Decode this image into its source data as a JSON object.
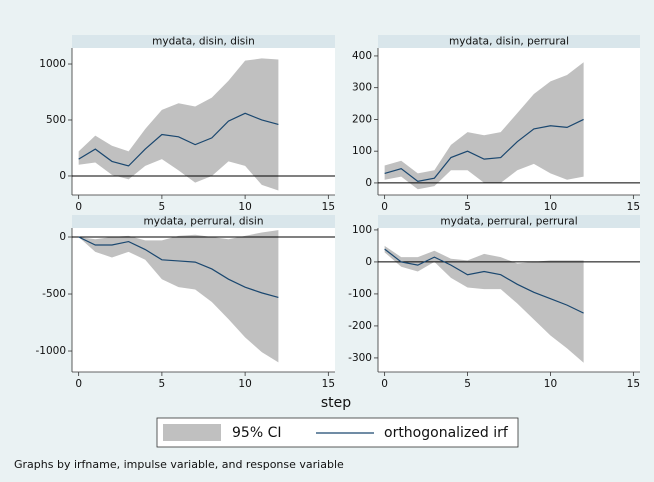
{
  "chart_data": [
    {
      "type": "irf",
      "title": "mydata, disin, disin",
      "x": [
        0,
        1,
        2,
        3,
        4,
        5,
        6,
        7,
        8,
        9,
        10,
        11,
        12
      ],
      "irf": [
        150,
        240,
        130,
        90,
        240,
        370,
        350,
        280,
        340,
        490,
        560,
        500,
        460
      ],
      "upper": [
        220,
        360,
        270,
        220,
        420,
        590,
        650,
        620,
        700,
        850,
        1030,
        1050,
        1040
      ],
      "lower": [
        100,
        120,
        10,
        -30,
        90,
        150,
        50,
        -60,
        0,
        130,
        90,
        -80,
        -130
      ],
      "xlim": [
        -0.4,
        15.4
      ],
      "xticks": [
        0,
        5,
        10,
        15
      ],
      "ylim": [
        -170,
        1143
      ],
      "yticks": [
        0,
        500,
        1000
      ],
      "yline": 0
    },
    {
      "type": "irf",
      "title": "mydata, disin, perrural",
      "x": [
        0,
        1,
        2,
        3,
        4,
        5,
        6,
        7,
        8,
        9,
        10,
        11,
        12
      ],
      "irf": [
        30,
        45,
        5,
        15,
        80,
        100,
        75,
        80,
        130,
        170,
        180,
        175,
        200
      ],
      "upper": [
        55,
        70,
        30,
        40,
        120,
        160,
        150,
        160,
        220,
        280,
        320,
        340,
        380
      ],
      "lower": [
        10,
        20,
        -20,
        -10,
        40,
        40,
        0,
        0,
        40,
        60,
        30,
        10,
        20
      ],
      "xlim": [
        -0.4,
        15.4
      ],
      "xticks": [
        0,
        5,
        10,
        15
      ],
      "ylim": [
        -38,
        425
      ],
      "yticks": [
        0,
        100,
        200,
        300,
        400
      ],
      "yline": 0
    },
    {
      "type": "irf",
      "title": "mydata, perrural, disin",
      "x": [
        0,
        1,
        2,
        3,
        4,
        5,
        6,
        7,
        8,
        9,
        10,
        11,
        12
      ],
      "irf": [
        0,
        -70,
        -70,
        -40,
        -110,
        -200,
        -210,
        -220,
        -280,
        -370,
        -440,
        -490,
        -530
      ],
      "upper": [
        0,
        -20,
        0,
        10,
        -30,
        -30,
        10,
        20,
        0,
        -20,
        10,
        40,
        60
      ],
      "lower": [
        0,
        -130,
        -180,
        -130,
        -200,
        -370,
        -440,
        -460,
        -570,
        -720,
        -880,
        -1010,
        -1100
      ],
      "xlim": [
        -0.4,
        15.4
      ],
      "xticks": [
        0,
        5,
        10,
        15
      ],
      "ylim": [
        -1184,
        79
      ],
      "yticks": [
        -1000,
        -500,
        0
      ],
      "yline": 0
    },
    {
      "type": "irf",
      "title": "mydata, perrural, perrural",
      "x": [
        0,
        1,
        2,
        3,
        4,
        5,
        6,
        7,
        8,
        9,
        10,
        11,
        12
      ],
      "irf": [
        40,
        0,
        -10,
        15,
        -10,
        -40,
        -30,
        -40,
        -70,
        -95,
        -115,
        -135,
        -160
      ],
      "upper": [
        50,
        15,
        15,
        35,
        10,
        5,
        25,
        15,
        -5,
        0,
        5,
        5,
        5
      ],
      "lower": [
        30,
        -15,
        -30,
        0,
        -50,
        -80,
        -85,
        -85,
        -130,
        -180,
        -230,
        -270,
        -315
      ],
      "xlim": [
        -0.4,
        15.4
      ],
      "xticks": [
        0,
        5,
        10,
        15
      ],
      "ylim": [
        -344,
        106
      ],
      "yticks": [
        -300,
        -200,
        -100,
        0,
        100
      ],
      "yline": 0
    }
  ],
  "xlabel": "step",
  "series": [
    {
      "name": "95% CI",
      "color": "#c0c0c0"
    },
    {
      "name": "orthogonalized irf",
      "color": "#1a476f"
    }
  ],
  "note": "Graphs by irfname, impulse variable, and response variable"
}
